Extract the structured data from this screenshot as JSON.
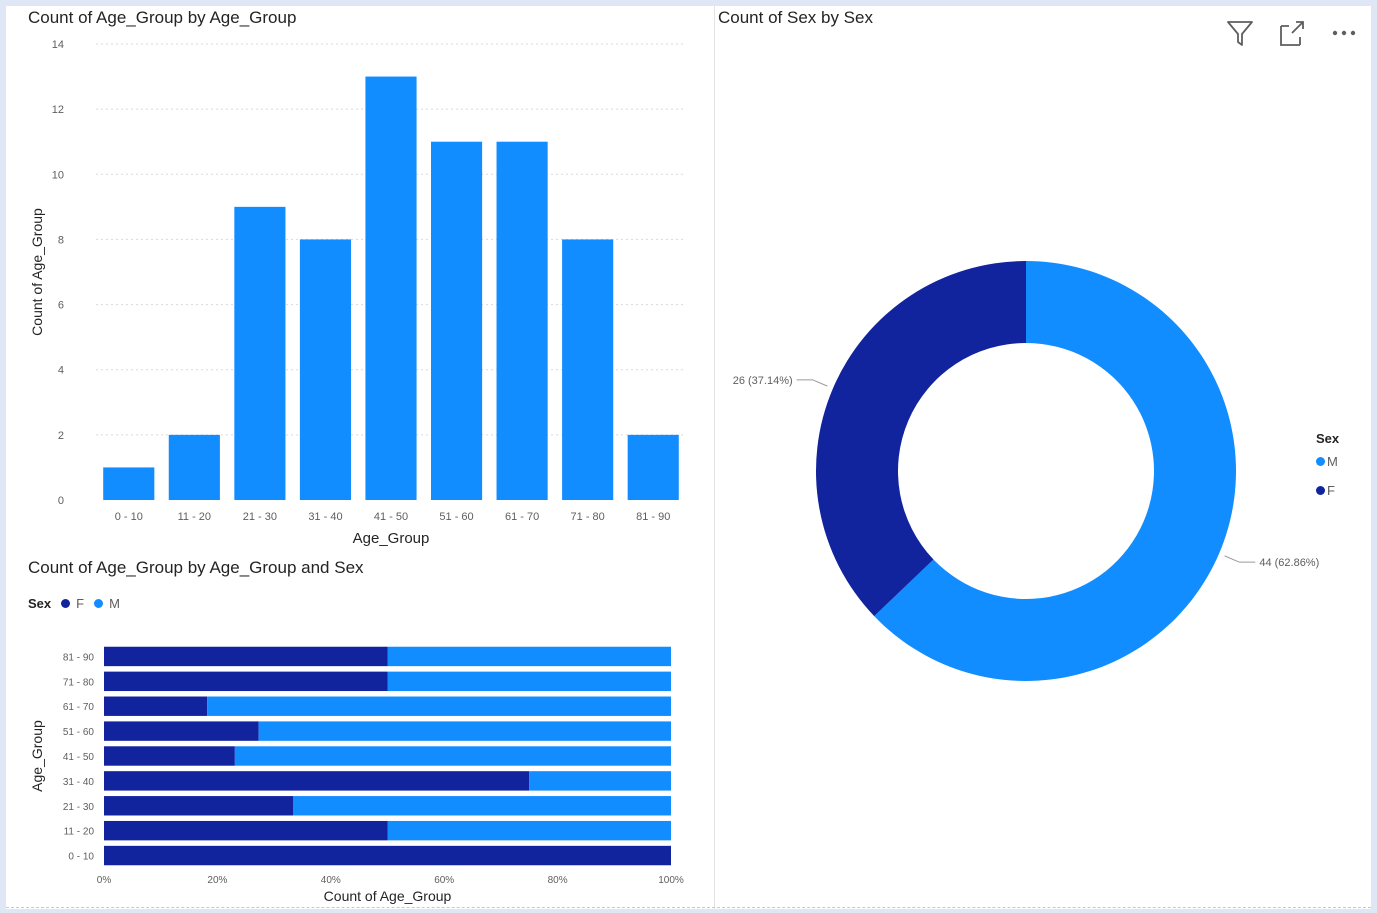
{
  "colors": {
    "m": "#118dff",
    "f": "#12239e",
    "grid": "#d9d9d9",
    "axis_text": "#605e5c"
  },
  "header_icons": [
    "filter-icon",
    "focus-mode-icon",
    "more-options-icon"
  ],
  "charts": {
    "age": {
      "title": "Count of Age_Group by Age_Group",
      "chart_data": {
        "type": "bar",
        "categories": [
          "0 - 10",
          "11 - 20",
          "21 - 30",
          "31 - 40",
          "41 - 50",
          "51 - 60",
          "61 - 70",
          "71 - 80",
          "81 - 90"
        ],
        "values": [
          1,
          2,
          9,
          8,
          13,
          11,
          11,
          8,
          2
        ],
        "xlabel": "Age_Group",
        "ylabel": "Count of Age_Group",
        "ylim": [
          0,
          14
        ],
        "yticks": [
          0,
          2,
          4,
          6,
          8,
          10,
          12,
          14
        ],
        "grid": true
      }
    },
    "sex": {
      "title": "Count of Sex by Sex",
      "legend_title": "Sex",
      "legend": [
        {
          "label": "M",
          "color": "#118dff"
        },
        {
          "label": "F",
          "color": "#12239e"
        }
      ],
      "chart_data": {
        "type": "pie",
        "donut": true,
        "slices": [
          {
            "name": "M",
            "value": 44,
            "label": "44 (62.86%)",
            "color": "#118dff"
          },
          {
            "name": "F",
            "value": 26,
            "label": "26 (37.14%)",
            "color": "#12239e"
          }
        ],
        "legend_position": "right"
      }
    },
    "agesex": {
      "title": "Count of Age_Group by Age_Group and Sex",
      "legend_title": "Sex",
      "legend": [
        {
          "label": "F",
          "color": "#12239e"
        },
        {
          "label": "M",
          "color": "#118dff"
        }
      ],
      "chart_data": {
        "type": "bar",
        "orientation": "horizontal",
        "stacked": "100%",
        "categories": [
          "81 - 90",
          "71 - 80",
          "61 - 70",
          "51 - 60",
          "41 - 50",
          "31 - 40",
          "21 - 30",
          "11 - 20",
          "0 - 10"
        ],
        "series": [
          {
            "name": "F",
            "values": [
              1,
              4,
              2,
              3,
              3,
              6,
              3,
              1,
              1
            ],
            "color": "#12239e"
          },
          {
            "name": "M",
            "values": [
              1,
              4,
              9,
              8,
              10,
              2,
              6,
              1,
              0
            ],
            "color": "#118dff"
          }
        ],
        "xticks": [
          "0%",
          "20%",
          "40%",
          "60%",
          "80%",
          "100%"
        ],
        "xlabel": "Count of Age_Group",
        "ylabel": "Age_Group",
        "legend_position": "top-left"
      }
    }
  }
}
